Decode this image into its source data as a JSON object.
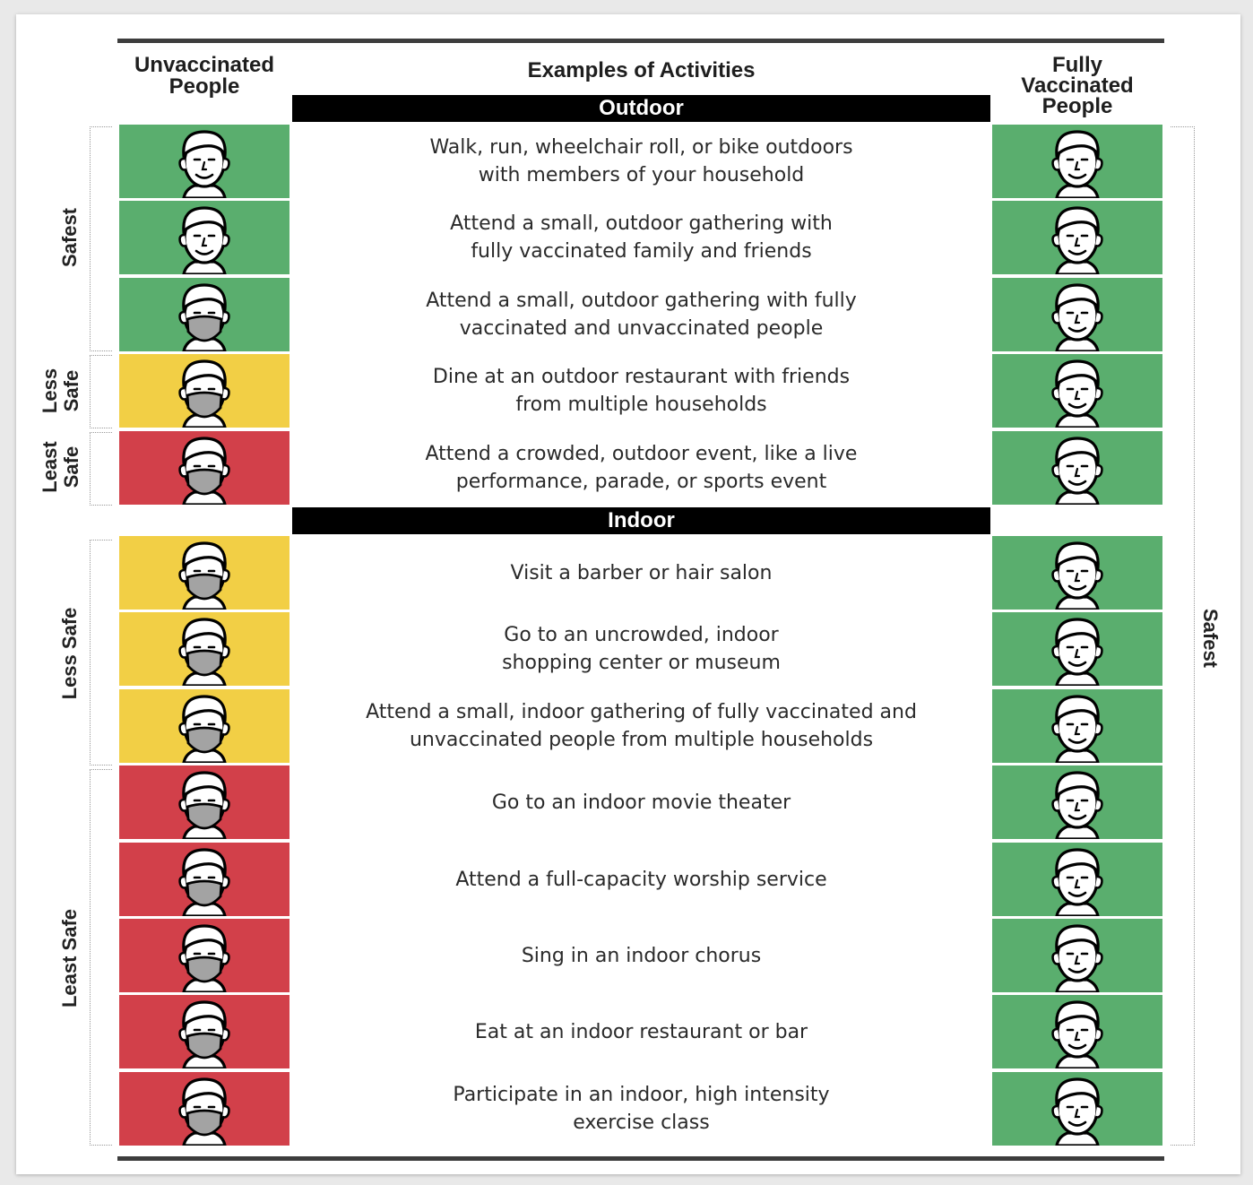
{
  "header": {
    "unvaccinated": [
      "Unvaccinated",
      "People"
    ],
    "activities": "Examples of Activities",
    "vaccinated": [
      "Fully",
      "Vaccinated",
      "People"
    ]
  },
  "sections": [
    {
      "title": "Outdoor",
      "rows": [
        {
          "activity": "Walk, run, wheelchair roll, or bike outdoors\nwith members of your household",
          "unvax_level": "safest",
          "unvax_mask": false,
          "vax_level": "safest"
        },
        {
          "activity": "Attend a small, outdoor gathering with\nfully vaccinated family and friends",
          "unvax_level": "safest",
          "unvax_mask": false,
          "vax_level": "safest"
        },
        {
          "activity": "Attend a small, outdoor gathering with fully\nvaccinated and unvaccinated people",
          "unvax_level": "safest",
          "unvax_mask": true,
          "vax_level": "safest"
        },
        {
          "activity": "Dine at an outdoor restaurant with friends\nfrom multiple households",
          "unvax_level": "less safe",
          "unvax_mask": true,
          "vax_level": "safest"
        },
        {
          "activity": "Attend a crowded, outdoor event, like a live\nperformance, parade, or sports event",
          "unvax_level": "least safe",
          "unvax_mask": true,
          "vax_level": "safest"
        }
      ]
    },
    {
      "title": "Indoor",
      "rows": [
        {
          "activity": "Visit a barber or hair salon",
          "unvax_level": "less safe",
          "unvax_mask": true,
          "vax_level": "safest"
        },
        {
          "activity": "Go to an uncrowded, indoor\nshopping center or museum",
          "unvax_level": "less safe",
          "unvax_mask": true,
          "vax_level": "safest"
        },
        {
          "activity": "Attend a small, indoor gathering of fully vaccinated and\nunvaccinated people from multiple households",
          "unvax_level": "less safe",
          "unvax_mask": true,
          "vax_level": "safest"
        },
        {
          "activity": "Go to an indoor movie theater",
          "unvax_level": "least safe",
          "unvax_mask": true,
          "vax_level": "safest"
        },
        {
          "activity": "Attend a full-capacity worship service",
          "unvax_level": "least safe",
          "unvax_mask": true,
          "vax_level": "safest"
        },
        {
          "activity": "Sing in an indoor chorus",
          "unvax_level": "least safe",
          "unvax_mask": true,
          "vax_level": "safest"
        },
        {
          "activity": "Eat at an indoor restaurant or bar",
          "unvax_level": "least safe",
          "unvax_mask": true,
          "vax_level": "safest"
        },
        {
          "activity": "Participate in an indoor, high intensity\nexercise class",
          "unvax_level": "least safe",
          "unvax_mask": true,
          "vax_level": "safest"
        }
      ]
    }
  ],
  "side_labels": {
    "left": [
      {
        "text": [
          "Safest"
        ]
      },
      {
        "text": [
          "Less",
          "Safe"
        ]
      },
      {
        "text": [
          "Least",
          "Safe"
        ]
      },
      {
        "text": [
          "Less Safe"
        ]
      },
      {
        "text": [
          "Least Safe"
        ]
      }
    ],
    "right": [
      {
        "text": [
          "Safest"
        ]
      }
    ]
  },
  "level_colors": {
    "safest": "#5aae6e",
    "less safe": "#f2cf45",
    "least safe": "#d2404a"
  },
  "icons": {
    "face": "person-face-icon",
    "masked_face": "masked-person-face-icon"
  }
}
